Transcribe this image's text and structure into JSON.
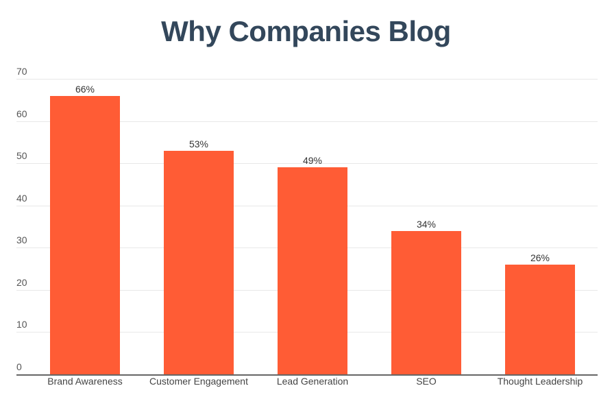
{
  "chart": {
    "title": "Why Companies Blog",
    "bar_color": "#ff5c35",
    "title_color": "#33475b",
    "yticks": [
      "0",
      "10",
      "20",
      "30",
      "40",
      "50",
      "60",
      "70"
    ],
    "bars": [
      {
        "category": "Brand Awareness",
        "value": 66,
        "label": "66%"
      },
      {
        "category": "Customer Engagement",
        "value": 53,
        "label": "53%"
      },
      {
        "category": "Lead Generation",
        "value": 49,
        "label": "49%"
      },
      {
        "category": "SEO",
        "value": 34,
        "label": "34%"
      },
      {
        "category": "Thought Leadership",
        "value": 26,
        "label": "26%"
      }
    ]
  },
  "chart_data": {
    "type": "bar",
    "title": "Why Companies Blog",
    "categories": [
      "Brand Awareness",
      "Customer Engagement",
      "Lead Generation",
      "SEO",
      "Thought Leadership"
    ],
    "values": [
      66,
      53,
      49,
      34,
      26
    ],
    "data_labels": [
      "66%",
      "53%",
      "49%",
      "34%",
      "26%"
    ],
    "xlabel": "",
    "ylabel": "",
    "ylim": [
      0,
      70
    ],
    "yticks": [
      0,
      10,
      20,
      30,
      40,
      50,
      60,
      70
    ],
    "grid": true,
    "legend": null
  }
}
